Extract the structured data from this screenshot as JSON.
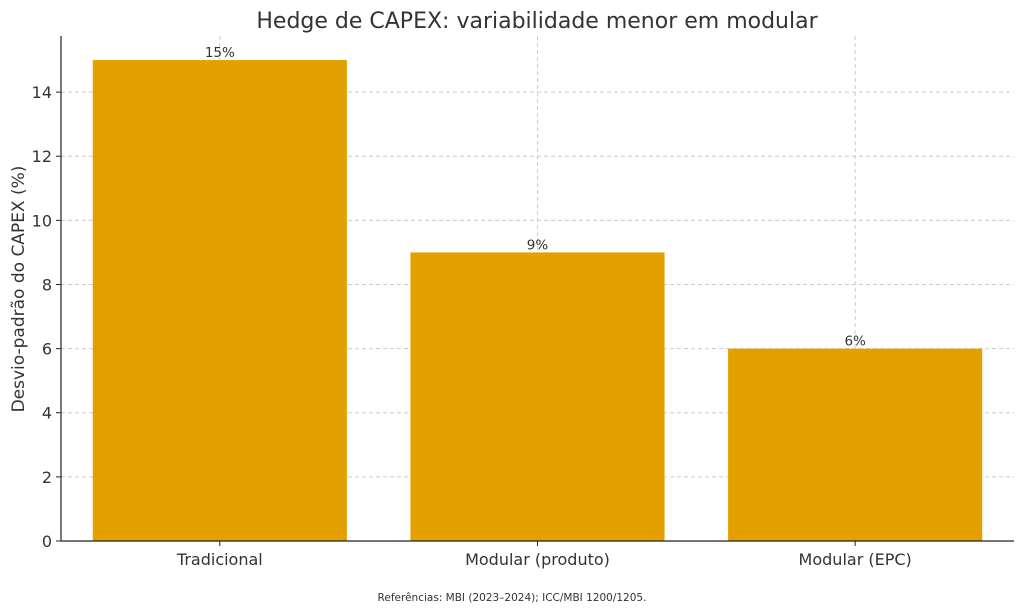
{
  "chart_data": {
    "type": "bar",
    "title": "Hedge de CAPEX: variabilidade menor em modular",
    "xlabel": "",
    "ylabel": "Desvio-padrão do CAPEX (%)",
    "categories": [
      "Tradicional",
      "Modular (produto)",
      "Modular (EPC)"
    ],
    "values": [
      15,
      9,
      6
    ],
    "data_labels": [
      "15%",
      "9%",
      "6%"
    ],
    "ylim": [
      0,
      15.75
    ],
    "yticks": [
      0,
      2,
      4,
      6,
      8,
      10,
      12,
      14
    ],
    "grid": true,
    "bar_color": "#E3A000",
    "footnote": "Referências: MBI (2023–2024); ICC/MBI 1200/1205."
  }
}
